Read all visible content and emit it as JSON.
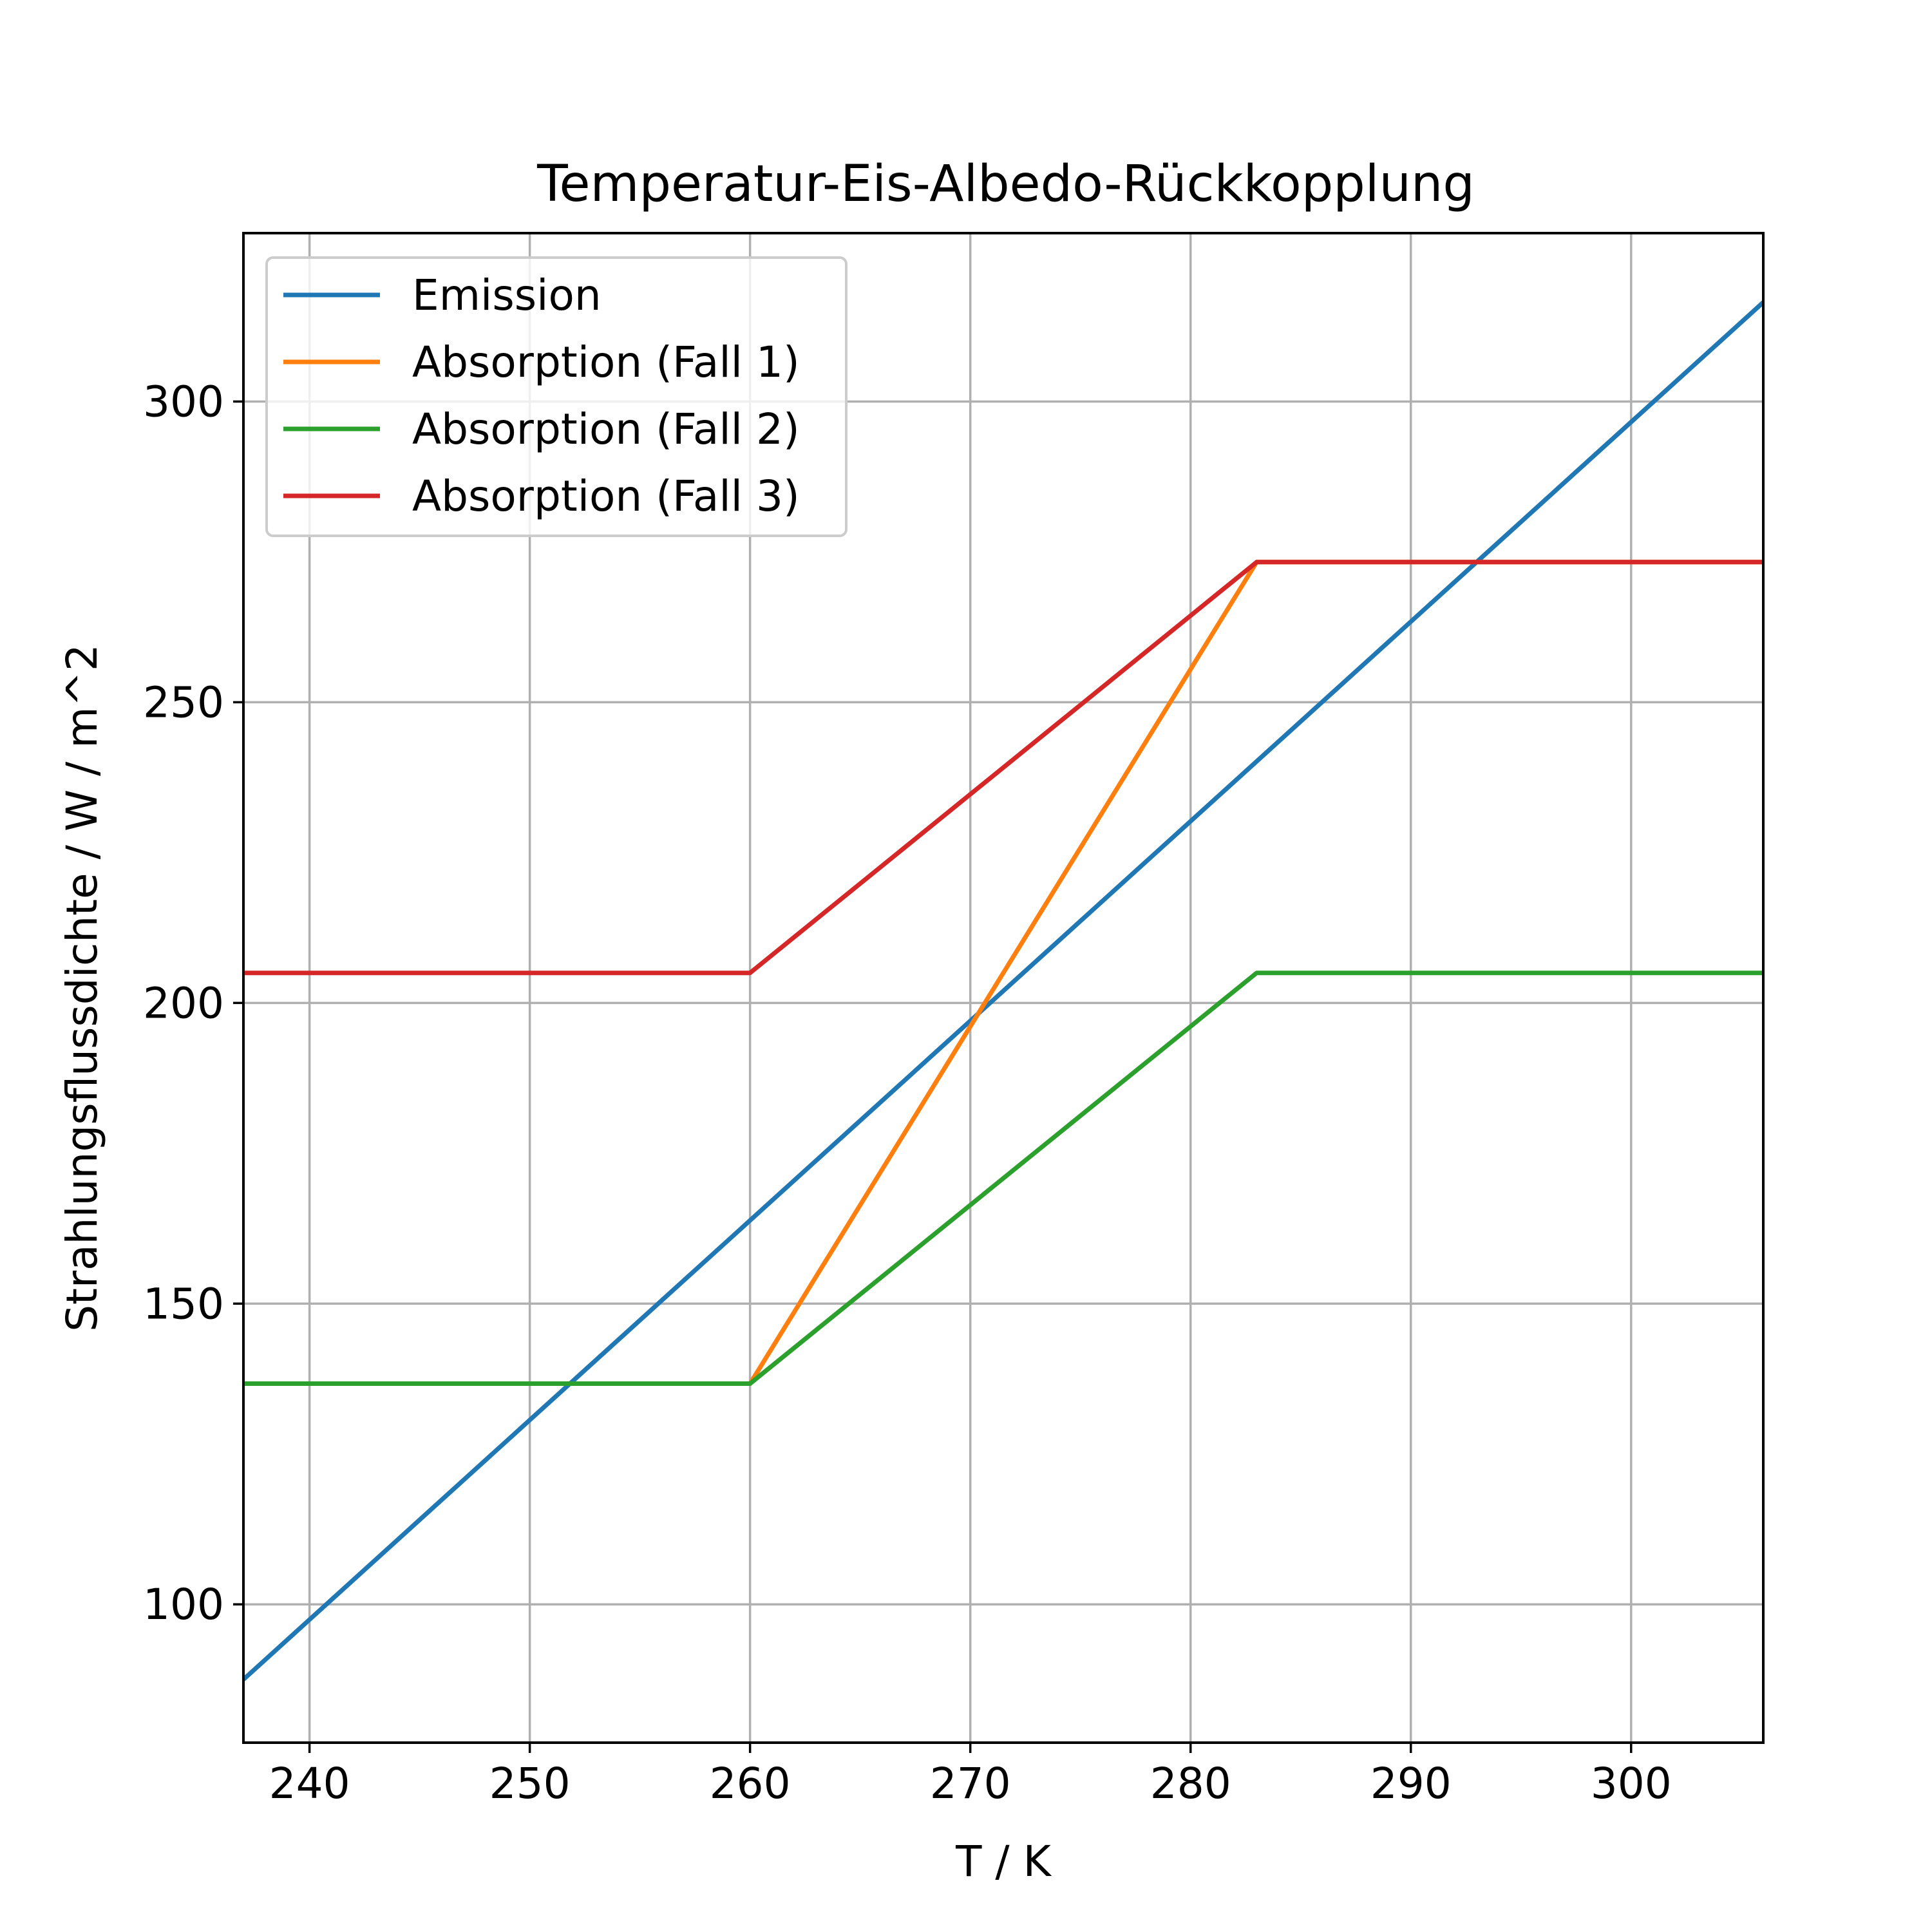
{
  "chart_data": {
    "type": "line",
    "title": "Temperatur-Eis-Albedo-Rückkopplung",
    "xlabel": "T / K",
    "ylabel": "Strahlungsflussdichte / W / m^2",
    "xlim": [
      237,
      306
    ],
    "ylim": [
      77,
      328
    ],
    "xticks": [
      240,
      250,
      260,
      270,
      280,
      290,
      300
    ],
    "yticks": [
      100,
      150,
      200,
      250,
      300
    ],
    "xtick_labels": [
      "240",
      "250",
      "260",
      "270",
      "280",
      "290",
      "300"
    ],
    "ytick_labels": [
      "100",
      "150",
      "200",
      "250",
      "300"
    ],
    "grid": true,
    "legend_position": "upper-left",
    "series": [
      {
        "name": "Emission",
        "color": "#1f77b4",
        "points": [
          [
            237,
            87.5
          ],
          [
            306,
            316.5
          ]
        ]
      },
      {
        "name": "Absorption (Fall 1)",
        "color": "#ff7f0e",
        "points": [
          [
            237,
            136.7
          ],
          [
            260,
            136.7
          ],
          [
            283,
            273.3
          ],
          [
            306,
            273.3
          ]
        ]
      },
      {
        "name": "Absorption (Fall 2)",
        "color": "#2ca02c",
        "points": [
          [
            237,
            136.7
          ],
          [
            260,
            136.7
          ],
          [
            283,
            205
          ],
          [
            306,
            205
          ]
        ]
      },
      {
        "name": "Absorption (Fall 3)",
        "color": "#d62728",
        "points": [
          [
            237,
            205
          ],
          [
            260,
            205
          ],
          [
            283,
            273.3
          ],
          [
            306,
            273.3
          ]
        ]
      }
    ]
  }
}
